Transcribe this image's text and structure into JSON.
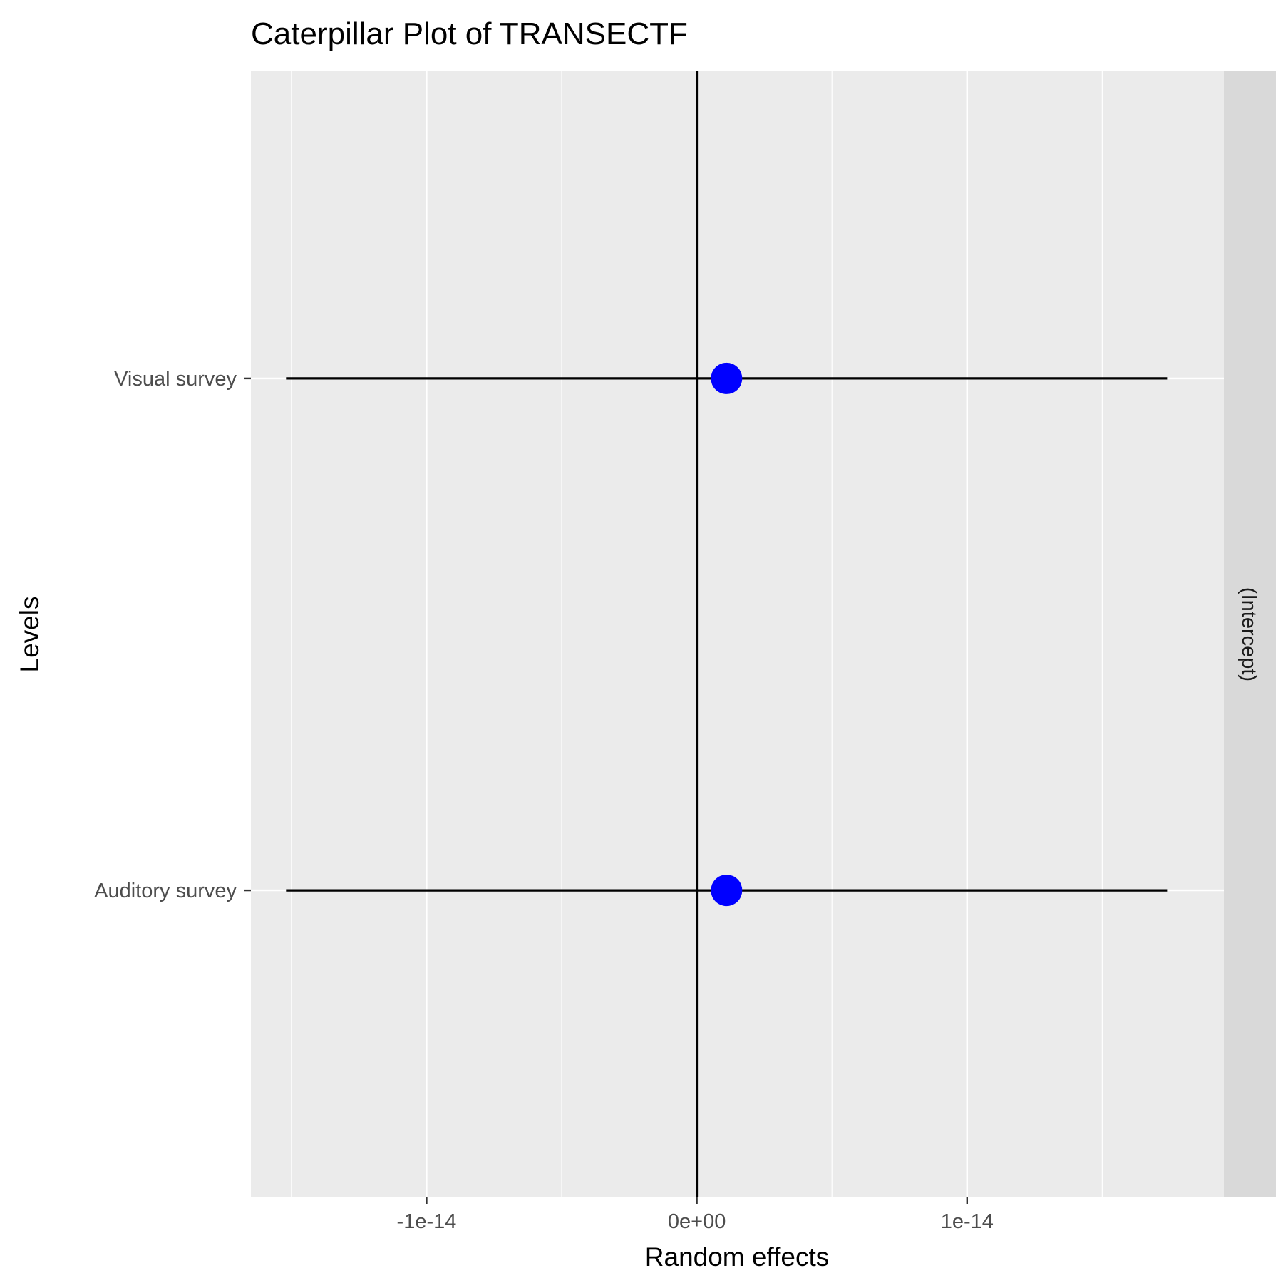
{
  "chart_data": {
    "type": "scatter",
    "title": "Caterpillar Plot of  TRANSECTF",
    "xlabel": "Random effects",
    "ylabel": "Levels",
    "facet_label": "(Intercept)",
    "xlim": [
      -1.65e-14,
      1.95e-14
    ],
    "x_ticks": [
      {
        "value": -1e-14,
        "label": "-1e-14"
      },
      {
        "value": 0,
        "label": "0e+00"
      },
      {
        "value": 1e-14,
        "label": "1e-14"
      }
    ],
    "x_minor_ticks": [
      -1.5e-14,
      -5e-15,
      5e-15,
      1.5e-14
    ],
    "categories": [
      "Auditory survey",
      "Visual survey"
    ],
    "points": [
      {
        "level": "Auditory survey",
        "estimate": 1.1e-15,
        "lower": -1.52e-14,
        "upper": 1.74e-14
      },
      {
        "level": "Visual survey",
        "estimate": 1.1e-15,
        "lower": -1.52e-14,
        "upper": 1.74e-14
      }
    ],
    "reference_line_x": 0,
    "grid": true,
    "colors": {
      "panel_bg": "#ebebeb",
      "strip_bg": "#d9d9d9",
      "grid": "#ffffff",
      "point": "#0000ff",
      "line": "#000000"
    }
  }
}
